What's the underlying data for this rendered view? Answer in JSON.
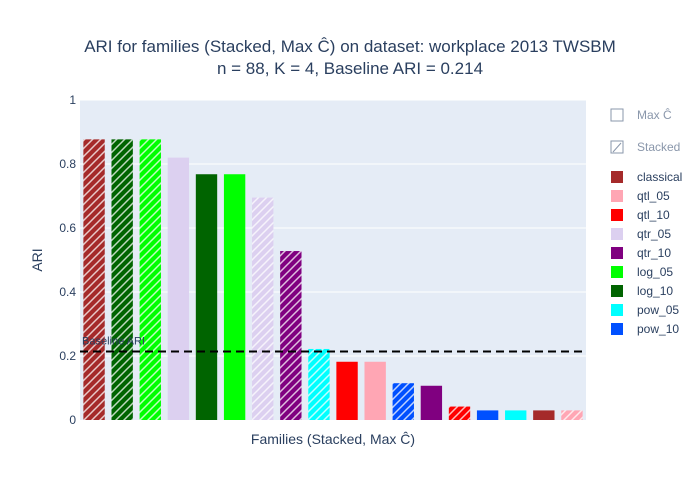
{
  "chart_data": {
    "type": "bar",
    "title_lines": [
      "ARI for families (Stacked, Max Ĉ) on dataset: workplace 2013 TWSBM",
      "n = 88, K = 4, Baseline ARI = 0.214"
    ],
    "xlabel": "Families (Stacked, Max Ĉ)",
    "ylabel": "ARI",
    "ylim": [
      0,
      1
    ],
    "yticks": [
      0,
      0.2,
      0.4,
      0.6,
      0.8,
      1
    ],
    "ytick_labels": [
      "0",
      "0.2",
      "0.4",
      "0.6",
      "0.8",
      "1"
    ],
    "grid": true,
    "legend_position": "right",
    "baseline": {
      "value": 0.214,
      "label": "Baseline ARI"
    },
    "families": [
      {
        "name": "classical",
        "color": "#a52a2a"
      },
      {
        "name": "qtl_05",
        "color": "#ffa6b4"
      },
      {
        "name": "qtl_10",
        "color": "#ff0000"
      },
      {
        "name": "qtr_05",
        "color": "#dcd0f0"
      },
      {
        "name": "qtr_10",
        "color": "#800080"
      },
      {
        "name": "log_05",
        "color": "#00ff00"
      },
      {
        "name": "log_10",
        "color": "#006400"
      },
      {
        "name": "pow_05",
        "color": "#00ffff"
      },
      {
        "name": "pow_10",
        "color": "#0050ff"
      }
    ],
    "method_legend": [
      {
        "name": "Max Ĉ",
        "hatched": false
      },
      {
        "name": "Stacked",
        "hatched": true
      }
    ],
    "bars": [
      {
        "family": "classical",
        "method": "Stacked",
        "value": 0.877
      },
      {
        "family": "log_10",
        "method": "Stacked",
        "value": 0.877
      },
      {
        "family": "log_05",
        "method": "Stacked",
        "value": 0.877
      },
      {
        "family": "qtr_05",
        "method": "Max Ĉ",
        "value": 0.82
      },
      {
        "family": "log_10",
        "method": "Max Ĉ",
        "value": 0.768
      },
      {
        "family": "log_05",
        "method": "Max Ĉ",
        "value": 0.768
      },
      {
        "family": "qtr_05",
        "method": "Stacked",
        "value": 0.695
      },
      {
        "family": "qtr_10",
        "method": "Stacked",
        "value": 0.528
      },
      {
        "family": "pow_05",
        "method": "Stacked",
        "value": 0.222
      },
      {
        "family": "qtl_10",
        "method": "Max Ĉ",
        "value": 0.182
      },
      {
        "family": "qtl_05",
        "method": "Max Ĉ",
        "value": 0.182
      },
      {
        "family": "pow_10",
        "method": "Stacked",
        "value": 0.115
      },
      {
        "family": "qtr_10",
        "method": "Max Ĉ",
        "value": 0.107
      },
      {
        "family": "qtl_10",
        "method": "Stacked",
        "value": 0.042
      },
      {
        "family": "pow_10",
        "method": "Max Ĉ",
        "value": 0.03
      },
      {
        "family": "pow_05",
        "method": "Max Ĉ",
        "value": 0.03
      },
      {
        "family": "classical",
        "method": "Max Ĉ",
        "value": 0.03
      },
      {
        "family": "qtl_05",
        "method": "Stacked",
        "value": 0.03
      }
    ]
  }
}
